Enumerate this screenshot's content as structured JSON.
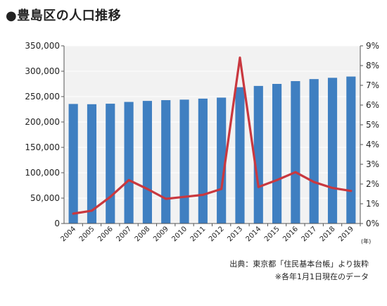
{
  "title": "●豊島区の人口推移",
  "source_line1": "出典：東京都「住民基本台帳」より抜粋",
  "source_line2": "※各年1月1日現在のデータ",
  "x_unit": "(年)",
  "colors": {
    "bar": "#3f7fc1",
    "line": "#c9383f",
    "plot_bg": "#f2f2f2",
    "axis": "#555555"
  },
  "chart_data": {
    "type": "bar",
    "categories": [
      "2004",
      "2005",
      "2006",
      "2007",
      "2008",
      "2009",
      "2010",
      "2011",
      "2012",
      "2013",
      "2014",
      "2015",
      "2016",
      "2017",
      "2018",
      "2019"
    ],
    "series": [
      {
        "type": "bar",
        "axis": "left",
        "values": [
          235500,
          235000,
          236000,
          239500,
          241500,
          243000,
          244000,
          246000,
          248000,
          268500,
          271000,
          275000,
          280500,
          284500,
          287000,
          289500
        ]
      },
      {
        "type": "line",
        "axis": "right",
        "values": [
          0.5,
          0.65,
          1.35,
          2.2,
          1.75,
          1.25,
          1.35,
          1.45,
          1.75,
          8.4,
          1.85,
          2.2,
          2.6,
          2.1,
          1.8,
          1.65
        ]
      }
    ],
    "y_left": {
      "min": 0,
      "max": 350000,
      "step": 50000,
      "tick_labels": [
        "0",
        "50,000",
        "100,000",
        "150,000",
        "200,000",
        "250,000",
        "300,000",
        "350,000"
      ]
    },
    "y_right": {
      "min": 0,
      "max": 9,
      "step": 1,
      "tick_labels": [
        "0%",
        "1%",
        "2%",
        "3%",
        "4%",
        "5%",
        "6%",
        "7%",
        "8%",
        "9%"
      ]
    },
    "grid": true,
    "legend": "none"
  }
}
